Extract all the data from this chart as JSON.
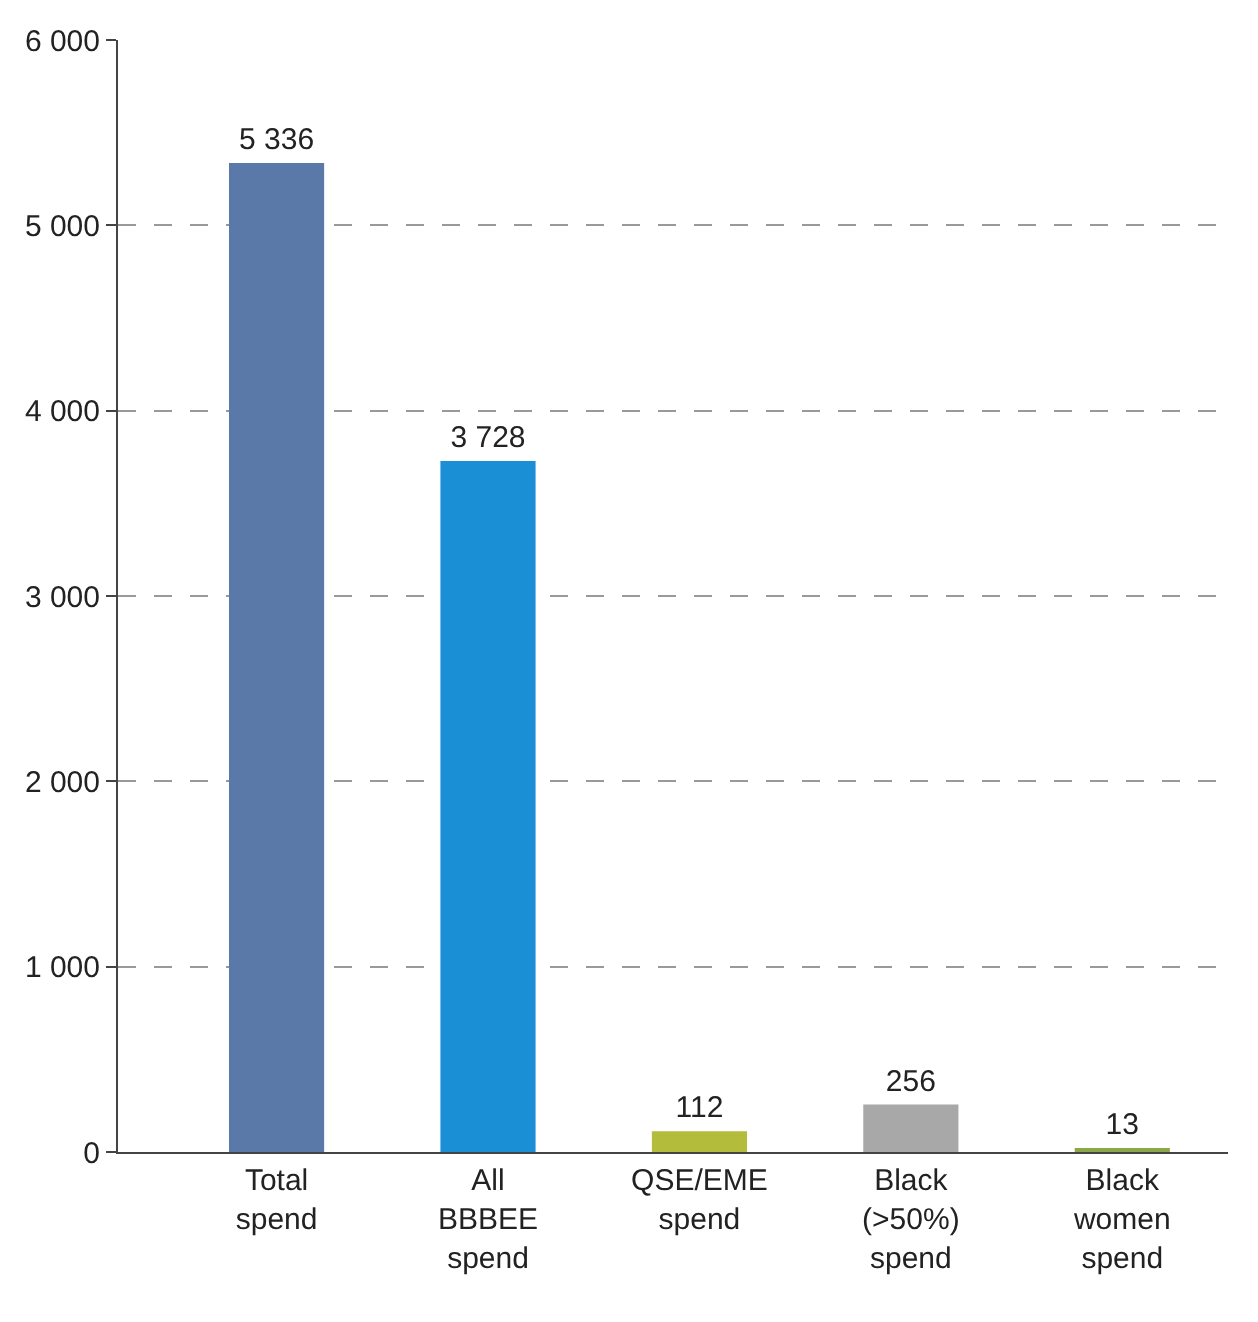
{
  "chart_data": {
    "type": "bar",
    "categories": [
      "Total\nspend",
      "All\nBBBEE\nspend",
      "QSE/EME\nspend",
      "Black\n(>50%)\nspend",
      "Black\nwomen\nspend"
    ],
    "values": [
      5336,
      3728,
      112,
      256,
      13
    ],
    "value_labels": [
      "5 336",
      "3 728",
      "112",
      "256",
      "13"
    ],
    "colors": [
      "#5a78a8",
      "#1a8fd6",
      "#b4bc3c",
      "#a8a8a8",
      "#8aa848"
    ],
    "ylim": [
      0,
      6000
    ],
    "yticks": [
      {
        "value": 0,
        "label": "0"
      },
      {
        "value": 1000,
        "label": "1 000"
      },
      {
        "value": 2000,
        "label": "2 000"
      },
      {
        "value": 3000,
        "label": "3 000"
      },
      {
        "value": 4000,
        "label": "4 000"
      },
      {
        "value": 5000,
        "label": "5 000"
      },
      {
        "value": 6000,
        "label": "6 000"
      }
    ],
    "grid": "y",
    "legend": false
  }
}
